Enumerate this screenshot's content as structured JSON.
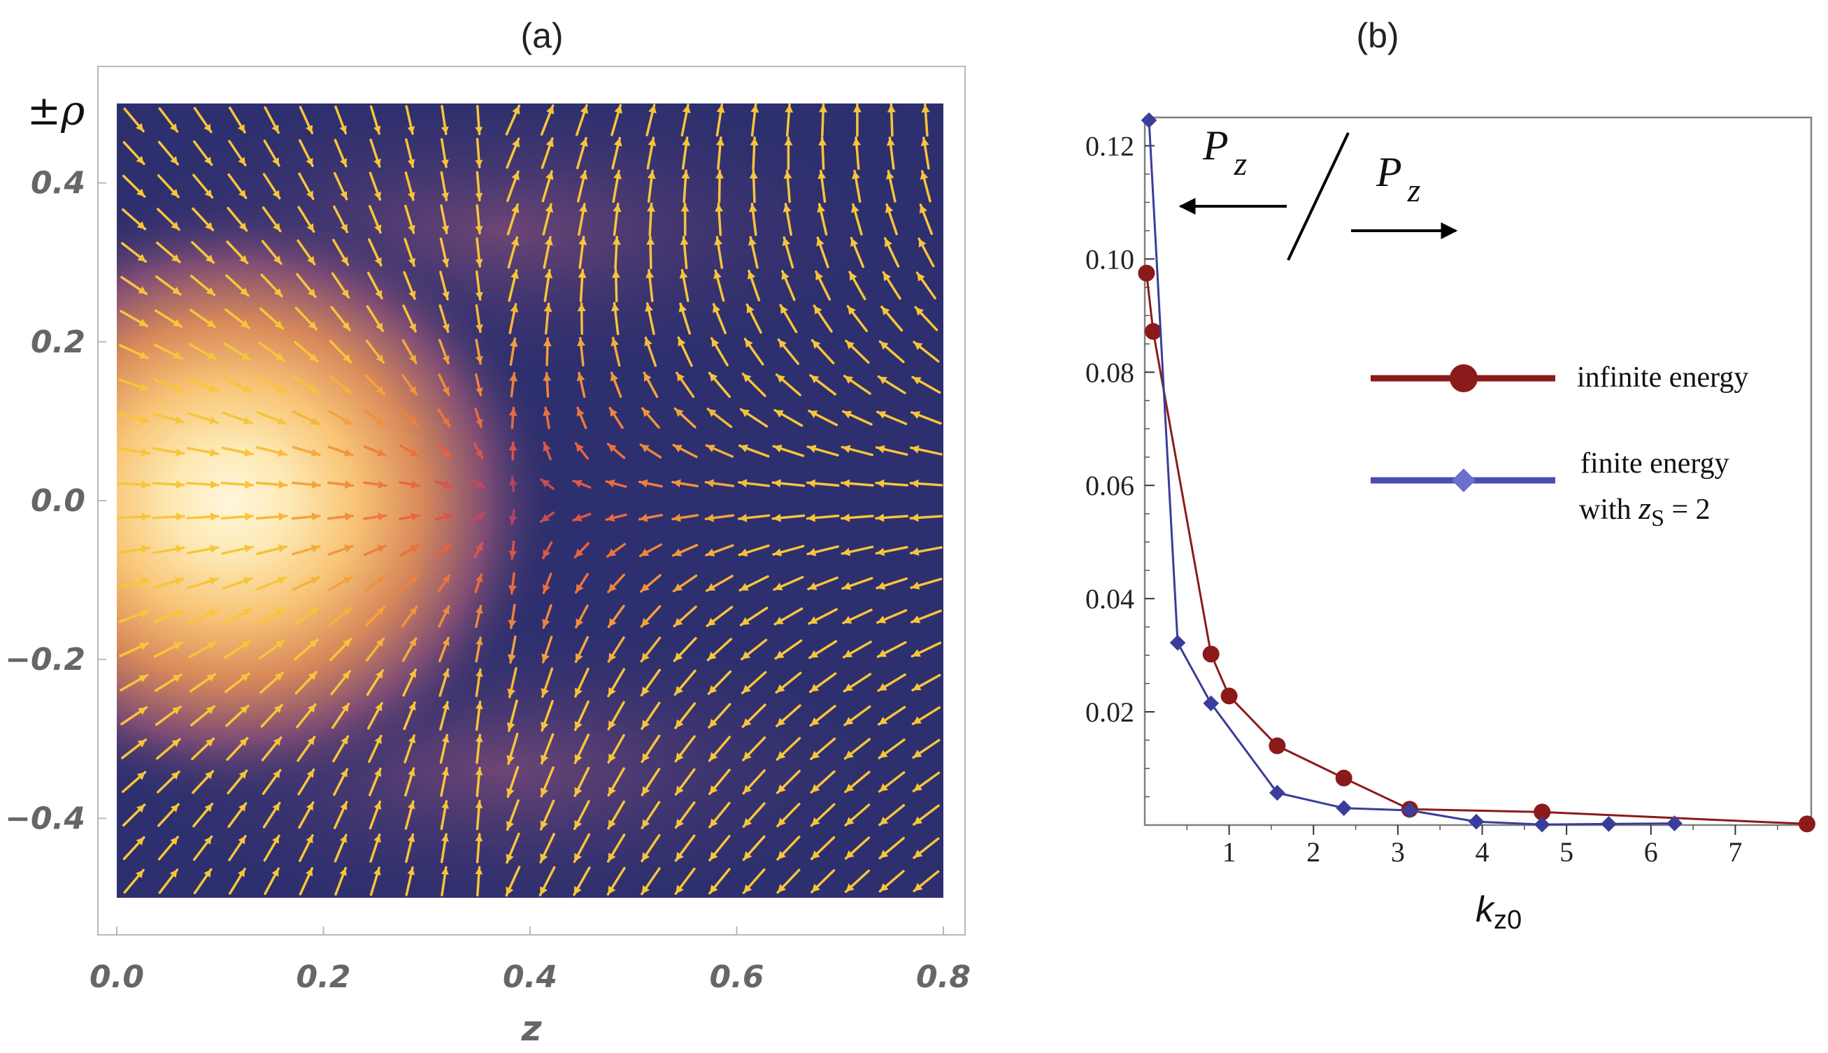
{
  "chart_data": [
    {
      "type": "vector-field-density",
      "panel_label": "(a)",
      "xlabel": "z",
      "ylabel": "±ρ",
      "xlim": [
        0.0,
        0.8
      ],
      "ylim": [
        -0.5,
        0.5
      ],
      "xticks": [
        "0.0",
        "0.2",
        "0.4",
        "0.6",
        "0.8"
      ],
      "yticks": [
        "0.4",
        "0.2",
        "0.0",
        "−0.2",
        "−0.4"
      ],
      "xtick_values": [
        0.0,
        0.2,
        0.4,
        0.6,
        0.8
      ],
      "ytick_values": [
        0.4,
        0.2,
        0.0,
        -0.2,
        -0.4
      ],
      "density_peak": {
        "z": 0.17,
        "rho": 0.0
      },
      "sink_point": {
        "z": 0.38,
        "rho": 0.0
      },
      "grid_points": {
        "nz": 24,
        "nrho": 24
      },
      "colors": {
        "background": "#2d2f6e",
        "hot": "#fff3cf",
        "arrow_low": "#5a1aa0",
        "arrow_high": "#f8c53a"
      }
    },
    {
      "type": "line",
      "panel_label": "(b)",
      "xlabel": "k",
      "xlabel_sub": "z0",
      "xlim": [
        0,
        7.9
      ],
      "ylim": [
        0,
        0.125
      ],
      "xticks": [
        "1",
        "2",
        "3",
        "4",
        "5",
        "6",
        "7"
      ],
      "xtick_values": [
        1,
        2,
        3,
        4,
        5,
        6,
        7
      ],
      "yticks": [
        "0.12",
        "0.10",
        "0.08",
        "0.06",
        "0.04",
        "0.02"
      ],
      "ytick_values": [
        0.12,
        0.1,
        0.08,
        0.06,
        0.04,
        0.02
      ],
      "series": [
        {
          "name": "infinite energy",
          "color": "#8b1a1a",
          "marker": "circle",
          "x": [
            0.02,
            0.1,
            0.785,
            1.0,
            1.57,
            2.36,
            3.14,
            4.71,
            7.85
          ],
          "y": [
            0.0975,
            0.0872,
            0.0302,
            0.0228,
            0.014,
            0.0083,
            0.0028,
            0.0023,
            0.0002
          ]
        },
        {
          "name": "finite energy with z_S = 2",
          "color": "#3a3d9a",
          "marker": "diamond",
          "x": [
            0.05,
            0.39,
            0.785,
            1.57,
            2.36,
            3.14,
            3.93,
            4.71,
            5.5,
            6.28
          ],
          "y": [
            0.1245,
            0.0322,
            0.0215,
            0.0057,
            0.003,
            0.0026,
            0.0006,
            0.0001,
            0.0002,
            0.0003
          ]
        }
      ],
      "legend": {
        "placement": "center-right",
        "entry1": "infinite energy",
        "entry2_line1": "finite energy",
        "entry2_line2_prefix": "with ",
        "entry2_var": "z",
        "entry2_sub": "S",
        "entry2_suffix": " = 2"
      },
      "annotations": {
        "arrow_left_var": "P",
        "arrow_left_sub": "z",
        "arrow_right_var": "P",
        "arrow_right_sub": "z"
      }
    }
  ]
}
